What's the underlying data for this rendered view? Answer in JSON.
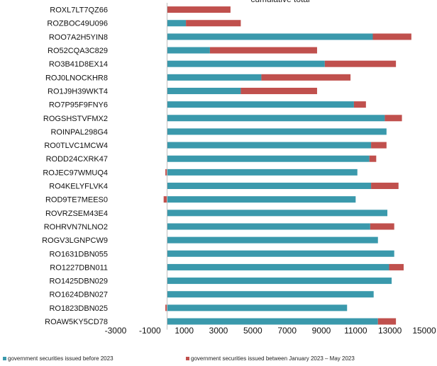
{
  "chart_data": {
    "type": "bar",
    "orientation": "horizontal",
    "stacked": true,
    "title": "cumulative total",
    "xlim": [
      -3000,
      15000
    ],
    "xticks": [
      -3000,
      -1000,
      1000,
      3000,
      5000,
      7000,
      9000,
      11000,
      13000,
      15000
    ],
    "grid": false,
    "legend_position": "bottom",
    "colors": {
      "before": "#3a99ac",
      "between": "#c0504d"
    },
    "categories": [
      "ROXL7LT7QZ66",
      "ROZBOC49U096",
      "ROO7A2H5YIN8",
      "RO52CQA3C829",
      "RO3B41D8EX14",
      "ROJ0LNOCKHR8",
      "RO1J9H39WKT4",
      "RO7P95F9FNY6",
      "ROGSHSTVFMX2",
      "ROINPAL298G4",
      "RO0TLVC1MCW4",
      "RODD24CXRK47",
      "ROJEC97WMUQ4",
      "RO4KELYFLVK4",
      "ROD9TE7MEES0",
      "ROVRZSEM43E4",
      "ROHRVN7NLNO2",
      "ROGV3LGNPCW9",
      "RO1631DBN055",
      "RO1227DBN011",
      "RO1425DBN029",
      "RO1624DBN027",
      "RO1823DBN025",
      "ROAW5KY5CD78"
    ],
    "series": [
      {
        "name": "government securities issued before 2023",
        "values": [
          0,
          1100,
          12000,
          2500,
          9200,
          5500,
          4300,
          10900,
          12700,
          12800,
          11900,
          11800,
          11100,
          11900,
          11000,
          12850,
          11850,
          12300,
          13250,
          12950,
          13100,
          12050,
          10500,
          12300
        ]
      },
      {
        "name": "government securities issued between January 2023 – May 2023",
        "values": [
          3700,
          3200,
          2250,
          6250,
          4150,
          5200,
          4450,
          700,
          1000,
          0,
          900,
          400,
          -100,
          1600,
          -200,
          0,
          1400,
          0,
          0,
          850,
          0,
          0,
          -100,
          1050
        ]
      }
    ]
  }
}
